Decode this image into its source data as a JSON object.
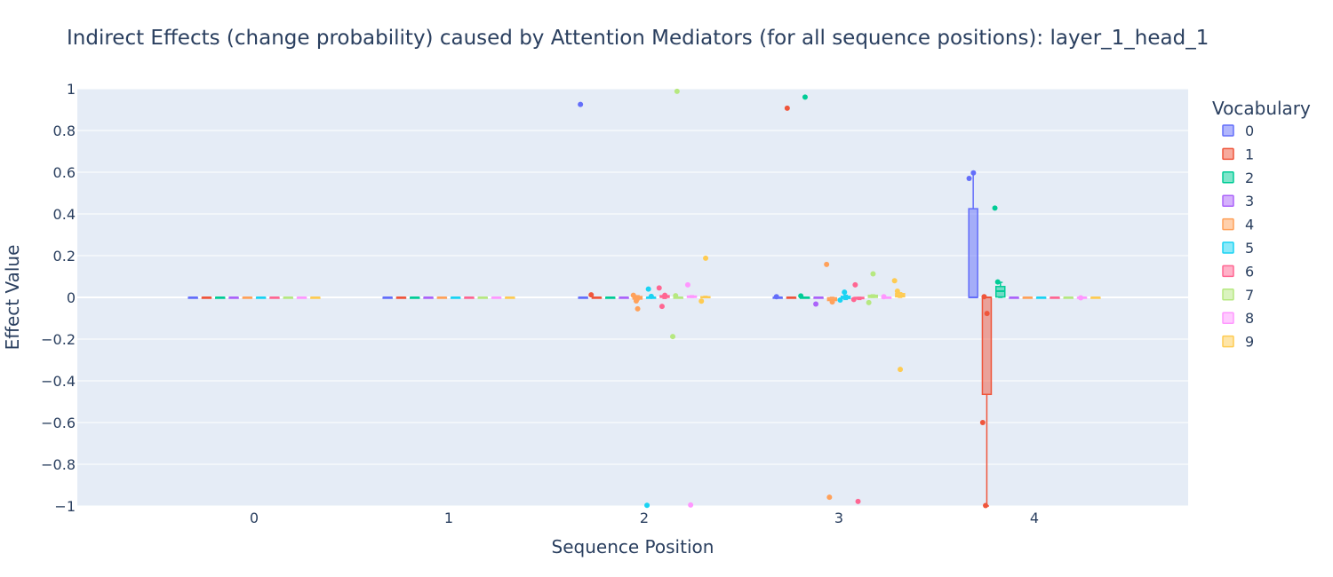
{
  "chart_data": {
    "type": "box",
    "title": "Indirect Effects (change probability) caused by Attention Mediators (for all sequence positions): layer_1_head_1",
    "xlabel": "Sequence Position",
    "ylabel": "Effect Value",
    "legend_title": "Vocabulary",
    "legend_placement": "right",
    "grid": true,
    "categories": [
      "0",
      "1",
      "2",
      "3",
      "4"
    ],
    "ylim": [
      -1,
      1
    ],
    "yticks": [
      1,
      0.8,
      0.6,
      0.4,
      0.2,
      0,
      -0.2,
      -0.4,
      -0.6,
      -0.8,
      -1
    ],
    "ytick_labels": [
      "1",
      "0.8",
      "0.6",
      "0.4",
      "0.2",
      "0",
      "−0.2",
      "−0.4",
      "−0.6",
      "−0.8",
      "−1"
    ],
    "colors": [
      "#636efa",
      "#EF553B",
      "#00cc96",
      "#ab63fa",
      "#FFA15A",
      "#19d3f3",
      "#FF6692",
      "#B6E880",
      "#FF97FF",
      "#FECB52"
    ],
    "series": [
      {
        "name": "0",
        "boxes": [
          {
            "pos": 0,
            "min": 0,
            "q1": 0,
            "median": 0,
            "q3": 0,
            "max": 0,
            "outliers": []
          },
          {
            "pos": 1,
            "min": 0,
            "q1": 0,
            "median": 0,
            "q3": 0,
            "max": 0,
            "outliers": []
          },
          {
            "pos": 2,
            "min": 0,
            "q1": 0,
            "median": 0,
            "q3": 0,
            "max": 0,
            "outliers": [
              0.925
            ]
          },
          {
            "pos": 3,
            "min": 0,
            "q1": 0,
            "median": 0,
            "q3": 0,
            "max": 0,
            "outliers": [
              0.003
            ]
          },
          {
            "pos": 4,
            "min": 0,
            "q1": 0,
            "median": 0,
            "q3": 0.425,
            "max": 0.6,
            "outliers": [
              0.597,
              0.57
            ]
          }
        ]
      },
      {
        "name": "1",
        "boxes": [
          {
            "pos": 0,
            "min": 0,
            "q1": 0,
            "median": 0,
            "q3": 0,
            "max": 0,
            "outliers": []
          },
          {
            "pos": 1,
            "min": 0,
            "q1": 0,
            "median": 0,
            "q3": 0,
            "max": 0,
            "outliers": []
          },
          {
            "pos": 2,
            "min": 0,
            "q1": 0,
            "median": 0,
            "q3": 0,
            "max": 0,
            "outliers": [
              0.012
            ]
          },
          {
            "pos": 3,
            "min": 0,
            "q1": 0,
            "median": 0,
            "q3": 0,
            "max": 0,
            "outliers": [
              0.907
            ]
          },
          {
            "pos": 4,
            "min": -1,
            "q1": -0.465,
            "median": 0,
            "q3": 0,
            "max": 0,
            "outliers": [
              0.003,
              -0.077,
              -0.6,
              -0.998
            ]
          }
        ]
      },
      {
        "name": "2",
        "boxes": [
          {
            "pos": 0,
            "min": 0,
            "q1": 0,
            "median": 0,
            "q3": 0,
            "max": 0,
            "outliers": []
          },
          {
            "pos": 1,
            "min": 0,
            "q1": 0,
            "median": 0,
            "q3": 0,
            "max": 0,
            "outliers": []
          },
          {
            "pos": 2,
            "min": 0,
            "q1": 0,
            "median": 0,
            "q3": 0,
            "max": 0,
            "outliers": []
          },
          {
            "pos": 3,
            "min": 0,
            "q1": 0,
            "median": 0,
            "q3": 0,
            "max": 0,
            "outliers": [
              0.96,
              0.007
            ]
          },
          {
            "pos": 4,
            "min": 0,
            "q1": 0.002,
            "median": 0.03,
            "q3": 0.052,
            "max": 0.072,
            "outliers": [
              0.428,
              0.074
            ]
          }
        ]
      },
      {
        "name": "3",
        "boxes": [
          {
            "pos": 0,
            "min": 0,
            "q1": 0,
            "median": 0,
            "q3": 0,
            "max": 0,
            "outliers": []
          },
          {
            "pos": 1,
            "min": 0,
            "q1": 0,
            "median": 0,
            "q3": 0,
            "max": 0,
            "outliers": []
          },
          {
            "pos": 2,
            "min": 0,
            "q1": 0,
            "median": 0,
            "q3": 0,
            "max": 0,
            "outliers": []
          },
          {
            "pos": 3,
            "min": 0,
            "q1": 0,
            "median": 0,
            "q3": 0,
            "max": 0,
            "outliers": [
              -0.032
            ]
          },
          {
            "pos": 4,
            "min": 0,
            "q1": 0,
            "median": 0,
            "q3": 0,
            "max": 0,
            "outliers": []
          }
        ]
      },
      {
        "name": "4",
        "boxes": [
          {
            "pos": 0,
            "min": 0,
            "q1": 0,
            "median": 0,
            "q3": 0,
            "max": 0,
            "outliers": []
          },
          {
            "pos": 1,
            "min": 0,
            "q1": 0,
            "median": 0,
            "q3": 0,
            "max": 0,
            "outliers": []
          },
          {
            "pos": 2,
            "min": -0.012,
            "q1": -0.008,
            "median": -0.002,
            "q3": 0.004,
            "max": 0.008,
            "outliers": [
              -0.055,
              0.01,
              -0.017
            ]
          },
          {
            "pos": 3,
            "min": -0.02,
            "q1": -0.015,
            "median": -0.01,
            "q3": -0.002,
            "max": 0,
            "outliers": [
              0.158,
              -0.958,
              -0.022
            ]
          },
          {
            "pos": 4,
            "min": 0,
            "q1": 0,
            "median": 0,
            "q3": 0,
            "max": 0,
            "outliers": []
          }
        ]
      },
      {
        "name": "5",
        "boxes": [
          {
            "pos": 0,
            "min": 0,
            "q1": 0,
            "median": 0,
            "q3": 0,
            "max": 0,
            "outliers": []
          },
          {
            "pos": 1,
            "min": 0,
            "q1": 0,
            "median": 0,
            "q3": 0,
            "max": 0,
            "outliers": []
          },
          {
            "pos": 2,
            "min": 0,
            "q1": 0,
            "median": 0,
            "q3": 0,
            "max": 0,
            "outliers": [
              0.04,
              0.005,
              -0.997
            ]
          },
          {
            "pos": 3,
            "min": -0.01,
            "q1": -0.005,
            "median": 0,
            "q3": 0.005,
            "max": 0.01,
            "outliers": [
              0.025,
              -0.013
            ]
          },
          {
            "pos": 4,
            "min": 0,
            "q1": 0,
            "median": 0,
            "q3": 0,
            "max": 0,
            "outliers": []
          }
        ]
      },
      {
        "name": "6",
        "boxes": [
          {
            "pos": 0,
            "min": 0,
            "q1": 0,
            "median": 0,
            "q3": 0,
            "max": 0,
            "outliers": []
          },
          {
            "pos": 1,
            "min": 0,
            "q1": 0,
            "median": 0,
            "q3": 0,
            "max": 0,
            "outliers": []
          },
          {
            "pos": 2,
            "min": -0.005,
            "q1": 0,
            "median": 0.003,
            "q3": 0.008,
            "max": 0.01,
            "outliers": [
              0.045,
              -0.043,
              0.01
            ]
          },
          {
            "pos": 3,
            "min": -0.01,
            "q1": -0.006,
            "median": -0.003,
            "q3": 0,
            "max": 0,
            "outliers": [
              0.06,
              -0.978,
              -0.01
            ]
          },
          {
            "pos": 4,
            "min": 0,
            "q1": 0,
            "median": 0,
            "q3": 0,
            "max": 0,
            "outliers": []
          }
        ]
      },
      {
        "name": "7",
        "boxes": [
          {
            "pos": 0,
            "min": 0,
            "q1": 0,
            "median": 0,
            "q3": 0,
            "max": 0,
            "outliers": []
          },
          {
            "pos": 1,
            "min": 0,
            "q1": 0,
            "median": 0,
            "q3": 0,
            "max": 0,
            "outliers": []
          },
          {
            "pos": 2,
            "min": 0,
            "q1": 0,
            "median": 0,
            "q3": 0,
            "max": 0,
            "outliers": [
              0.988,
              -0.188,
              0.008
            ]
          },
          {
            "pos": 3,
            "min": 0,
            "q1": 0,
            "median": 0.005,
            "q3": 0.01,
            "max": 0.012,
            "outliers": [
              0.113,
              -0.025
            ]
          },
          {
            "pos": 4,
            "min": 0,
            "q1": 0,
            "median": 0,
            "q3": 0,
            "max": 0,
            "outliers": []
          }
        ]
      },
      {
        "name": "8",
        "boxes": [
          {
            "pos": 0,
            "min": 0,
            "q1": 0,
            "median": 0,
            "q3": 0,
            "max": 0,
            "outliers": []
          },
          {
            "pos": 1,
            "min": 0,
            "q1": 0,
            "median": 0,
            "q3": 0,
            "max": 0,
            "outliers": []
          },
          {
            "pos": 2,
            "min": 0,
            "q1": 0,
            "median": 0.003,
            "q3": 0.006,
            "max": 0.008,
            "outliers": [
              0.06,
              -0.995
            ]
          },
          {
            "pos": 3,
            "min": 0,
            "q1": 0,
            "median": 0,
            "q3": 0,
            "max": 0,
            "outliers": [
              0.003
            ]
          },
          {
            "pos": 4,
            "min": 0,
            "q1": 0,
            "median": 0,
            "q3": 0,
            "max": 0,
            "outliers": [
              -0.002
            ]
          }
        ]
      },
      {
        "name": "9",
        "boxes": [
          {
            "pos": 0,
            "min": 0,
            "q1": 0,
            "median": 0,
            "q3": 0,
            "max": 0,
            "outliers": []
          },
          {
            "pos": 1,
            "min": 0,
            "q1": 0,
            "median": 0,
            "q3": 0,
            "max": 0,
            "outliers": []
          },
          {
            "pos": 2,
            "min": 0,
            "q1": 0,
            "median": 0,
            "q3": 0.003,
            "max": 0.005,
            "outliers": [
              0.188,
              -0.018
            ]
          },
          {
            "pos": 3,
            "min": 0,
            "q1": 0.003,
            "median": 0.01,
            "q3": 0.018,
            "max": 0.022,
            "outliers": [
              0.08,
              0.03,
              -0.345
            ]
          },
          {
            "pos": 4,
            "min": 0,
            "q1": 0,
            "median": 0,
            "q3": 0,
            "max": 0,
            "outliers": []
          }
        ]
      }
    ]
  }
}
